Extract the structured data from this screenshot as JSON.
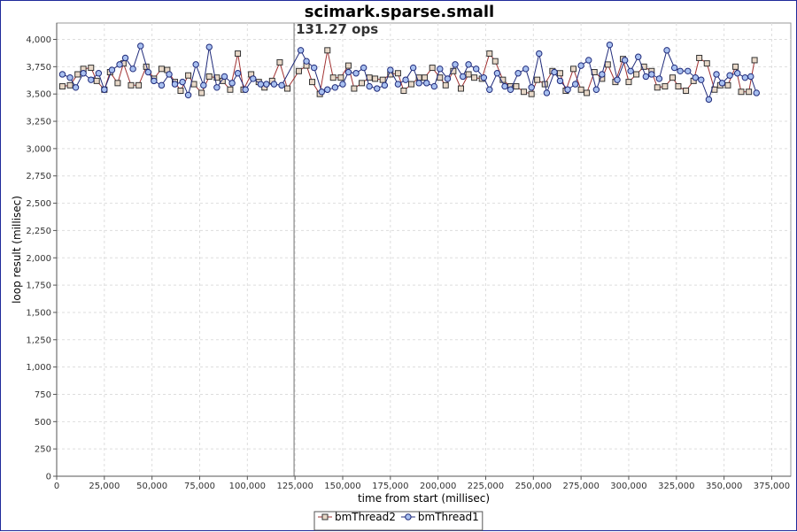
{
  "colors": {
    "frame_border": "#1f2a9a",
    "grid": "#dddddd",
    "marker_line": "#888888",
    "series_bmThread2_line": "#a03030",
    "series_bmThread2_fill": "#e8d8c8",
    "series_bmThread1_line": "#1f2a7a",
    "series_bmThread1_fill": "#a8c0f0"
  },
  "chart_data": {
    "type": "line",
    "title": "scimark.sparse.small",
    "xlabel": "time from start (millisec)",
    "ylabel": "loop result (millisec)",
    "xlim": [
      0,
      385000
    ],
    "ylim": [
      0,
      4150
    ],
    "grid": true,
    "legend_position": "bottom",
    "x_ticks": [
      "0",
      "25,000",
      "50,000",
      "75,000",
      "100,000",
      "125,000",
      "150,000",
      "175,000",
      "200,000",
      "225,000",
      "250,000",
      "275,000",
      "300,000",
      "325,000",
      "350,000",
      "375,000"
    ],
    "y_ticks": [
      "0",
      "250",
      "500",
      "750",
      "1,000",
      "1,250",
      "1,500",
      "1,750",
      "2,000",
      "2,250",
      "2,500",
      "2,750",
      "3,000",
      "3,250",
      "3,500",
      "3,750",
      "4,000"
    ],
    "annotation": {
      "x": 124500,
      "label": "131.27 ops"
    },
    "series": [
      {
        "name": "bmThread2",
        "marker": "square",
        "points": [
          [
            3000,
            3570
          ],
          [
            7000,
            3580
          ],
          [
            11000,
            3680
          ],
          [
            14000,
            3730
          ],
          [
            18000,
            3740
          ],
          [
            21000,
            3620
          ],
          [
            25000,
            3540
          ],
          [
            28000,
            3700
          ],
          [
            32000,
            3600
          ],
          [
            35000,
            3780
          ],
          [
            39000,
            3580
          ],
          [
            43000,
            3580
          ],
          [
            47000,
            3750
          ],
          [
            51000,
            3640
          ],
          [
            55000,
            3730
          ],
          [
            58000,
            3720
          ],
          [
            62000,
            3610
          ],
          [
            65000,
            3530
          ],
          [
            69000,
            3670
          ],
          [
            72000,
            3590
          ],
          [
            76000,
            3510
          ],
          [
            80000,
            3660
          ],
          [
            84000,
            3650
          ],
          [
            87000,
            3620
          ],
          [
            91000,
            3540
          ],
          [
            95000,
            3870
          ],
          [
            98000,
            3540
          ],
          [
            102000,
            3680
          ],
          [
            106000,
            3610
          ],
          [
            109000,
            3560
          ],
          [
            113000,
            3620
          ],
          [
            117000,
            3790
          ],
          [
            121000,
            3550
          ],
          [
            127000,
            3710
          ],
          [
            131000,
            3760
          ],
          [
            134000,
            3610
          ],
          [
            138000,
            3500
          ],
          [
            142000,
            3900
          ],
          [
            145000,
            3650
          ],
          [
            149000,
            3650
          ],
          [
            153000,
            3760
          ],
          [
            156000,
            3550
          ],
          [
            160000,
            3600
          ],
          [
            164000,
            3650
          ],
          [
            167000,
            3640
          ],
          [
            171000,
            3630
          ],
          [
            175000,
            3680
          ],
          [
            179000,
            3690
          ],
          [
            182000,
            3530
          ],
          [
            186000,
            3590
          ],
          [
            190000,
            3650
          ],
          [
            193000,
            3650
          ],
          [
            197000,
            3740
          ],
          [
            201000,
            3650
          ],
          [
            204000,
            3580
          ],
          [
            208000,
            3710
          ],
          [
            212000,
            3550
          ],
          [
            216000,
            3680
          ],
          [
            219000,
            3650
          ],
          [
            223000,
            3640
          ],
          [
            227000,
            3870
          ],
          [
            230000,
            3800
          ],
          [
            234000,
            3630
          ],
          [
            238000,
            3570
          ],
          [
            241000,
            3570
          ],
          [
            245000,
            3520
          ],
          [
            249000,
            3500
          ],
          [
            252000,
            3630
          ],
          [
            256000,
            3590
          ],
          [
            260000,
            3710
          ],
          [
            264000,
            3690
          ],
          [
            267000,
            3530
          ],
          [
            271000,
            3730
          ],
          [
            275000,
            3540
          ],
          [
            278000,
            3510
          ],
          [
            282000,
            3700
          ],
          [
            286000,
            3640
          ],
          [
            289000,
            3770
          ],
          [
            293000,
            3610
          ],
          [
            297000,
            3820
          ],
          [
            300000,
            3610
          ],
          [
            304000,
            3680
          ],
          [
            308000,
            3750
          ],
          [
            312000,
            3710
          ],
          [
            315000,
            3560
          ],
          [
            319000,
            3570
          ],
          [
            323000,
            3650
          ],
          [
            326000,
            3570
          ],
          [
            330000,
            3530
          ],
          [
            334000,
            3620
          ],
          [
            337000,
            3830
          ],
          [
            341000,
            3780
          ],
          [
            345000,
            3540
          ],
          [
            348000,
            3580
          ],
          [
            352000,
            3580
          ],
          [
            356000,
            3750
          ],
          [
            359000,
            3520
          ],
          [
            363000,
            3520
          ],
          [
            366000,
            3810
          ]
        ]
      },
      {
        "name": "bmThread1",
        "marker": "circle",
        "points": [
          [
            3000,
            3680
          ],
          [
            7000,
            3650
          ],
          [
            10000,
            3560
          ],
          [
            14000,
            3690
          ],
          [
            18000,
            3630
          ],
          [
            22000,
            3690
          ],
          [
            25000,
            3540
          ],
          [
            29000,
            3720
          ],
          [
            33000,
            3770
          ],
          [
            36000,
            3830
          ],
          [
            40000,
            3730
          ],
          [
            44000,
            3940
          ],
          [
            48000,
            3700
          ],
          [
            51000,
            3620
          ],
          [
            55000,
            3580
          ],
          [
            59000,
            3680
          ],
          [
            62000,
            3590
          ],
          [
            66000,
            3610
          ],
          [
            69000,
            3490
          ],
          [
            73000,
            3770
          ],
          [
            77000,
            3580
          ],
          [
            80000,
            3930
          ],
          [
            84000,
            3560
          ],
          [
            88000,
            3660
          ],
          [
            92000,
            3600
          ],
          [
            95000,
            3690
          ],
          [
            99000,
            3540
          ],
          [
            103000,
            3640
          ],
          [
            107000,
            3590
          ],
          [
            110000,
            3590
          ],
          [
            114000,
            3590
          ],
          [
            118000,
            3580
          ],
          [
            128000,
            3900
          ],
          [
            131000,
            3800
          ],
          [
            135000,
            3740
          ],
          [
            139000,
            3520
          ],
          [
            142000,
            3540
          ],
          [
            146000,
            3560
          ],
          [
            150000,
            3590
          ],
          [
            153000,
            3700
          ],
          [
            157000,
            3690
          ],
          [
            161000,
            3740
          ],
          [
            164000,
            3570
          ],
          [
            168000,
            3550
          ],
          [
            172000,
            3580
          ],
          [
            175000,
            3720
          ],
          [
            179000,
            3590
          ],
          [
            183000,
            3630
          ],
          [
            187000,
            3740
          ],
          [
            190000,
            3600
          ],
          [
            194000,
            3600
          ],
          [
            198000,
            3570
          ],
          [
            201000,
            3730
          ],
          [
            205000,
            3640
          ],
          [
            209000,
            3770
          ],
          [
            213000,
            3660
          ],
          [
            216000,
            3770
          ],
          [
            220000,
            3730
          ],
          [
            224000,
            3650
          ],
          [
            227000,
            3540
          ],
          [
            231000,
            3690
          ],
          [
            235000,
            3570
          ],
          [
            238000,
            3540
          ],
          [
            242000,
            3690
          ],
          [
            246000,
            3730
          ],
          [
            249000,
            3560
          ],
          [
            253000,
            3870
          ],
          [
            257000,
            3510
          ],
          [
            261000,
            3700
          ],
          [
            264000,
            3620
          ],
          [
            268000,
            3540
          ],
          [
            272000,
            3590
          ],
          [
            275000,
            3760
          ],
          [
            279000,
            3810
          ],
          [
            283000,
            3540
          ],
          [
            286000,
            3680
          ],
          [
            290000,
            3950
          ],
          [
            294000,
            3630
          ],
          [
            298000,
            3810
          ],
          [
            301000,
            3710
          ],
          [
            305000,
            3840
          ],
          [
            309000,
            3660
          ],
          [
            312000,
            3680
          ],
          [
            316000,
            3640
          ],
          [
            320000,
            3900
          ],
          [
            324000,
            3740
          ],
          [
            327000,
            3710
          ],
          [
            331000,
            3710
          ],
          [
            335000,
            3650
          ],
          [
            338000,
            3630
          ],
          [
            342000,
            3450
          ],
          [
            346000,
            3680
          ],
          [
            349000,
            3600
          ],
          [
            353000,
            3670
          ],
          [
            357000,
            3690
          ],
          [
            361000,
            3650
          ],
          [
            364000,
            3660
          ],
          [
            367000,
            3510
          ]
        ]
      }
    ]
  }
}
